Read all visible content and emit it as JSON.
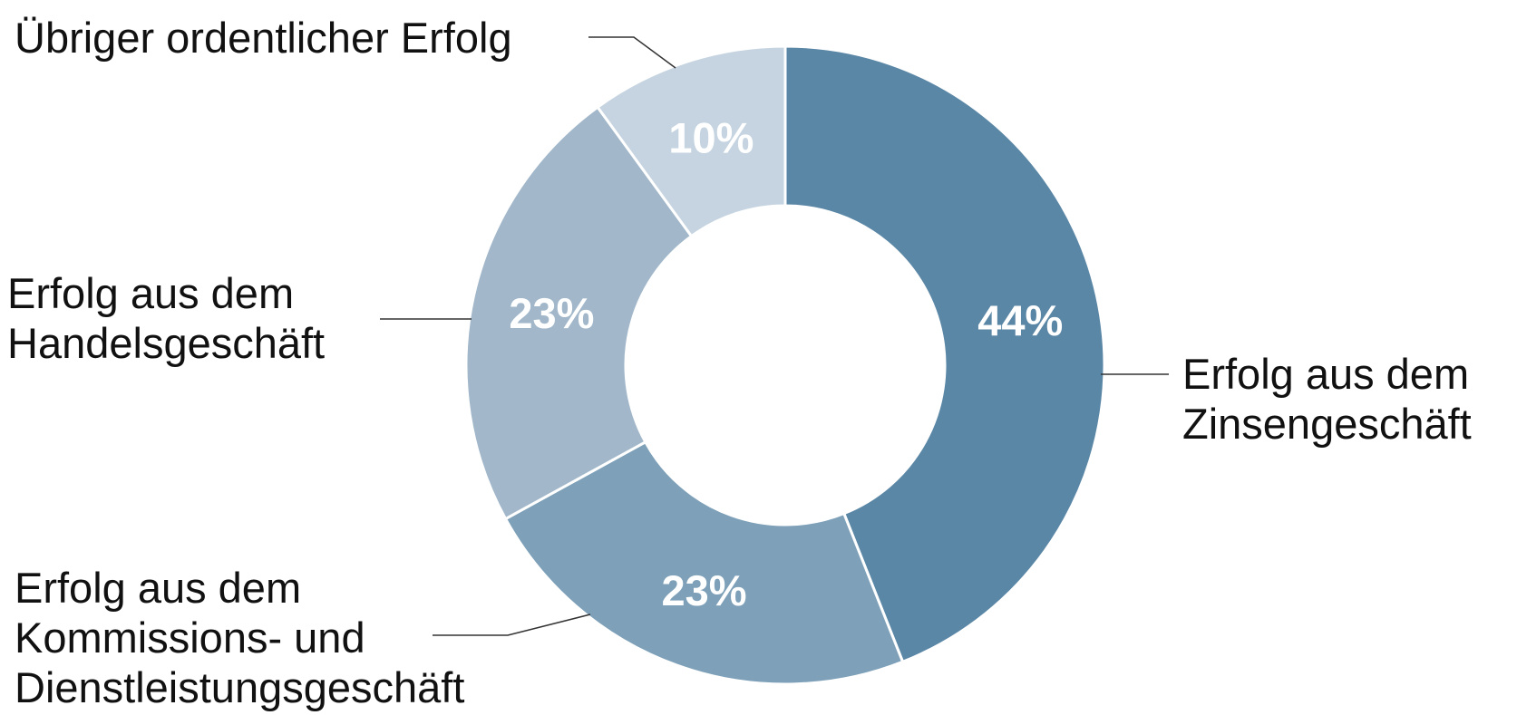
{
  "chart_data": {
    "type": "donut",
    "categories": [
      "Erfolg aus dem Zinsengeschäft",
      "Erfolg aus dem Kommissions- und Dienstleistungsgeschäft",
      "Erfolg aus dem Handelsgeschäft",
      "Übriger ordentlicher Erfolg"
    ],
    "values": [
      44,
      23,
      23,
      10
    ],
    "value_labels": [
      "44%",
      "23%",
      "23%",
      "10%"
    ],
    "colors": [
      "#5b87a6",
      "#7ea1b9",
      "#a2b8ca",
      "#c5d4e0"
    ]
  }
}
